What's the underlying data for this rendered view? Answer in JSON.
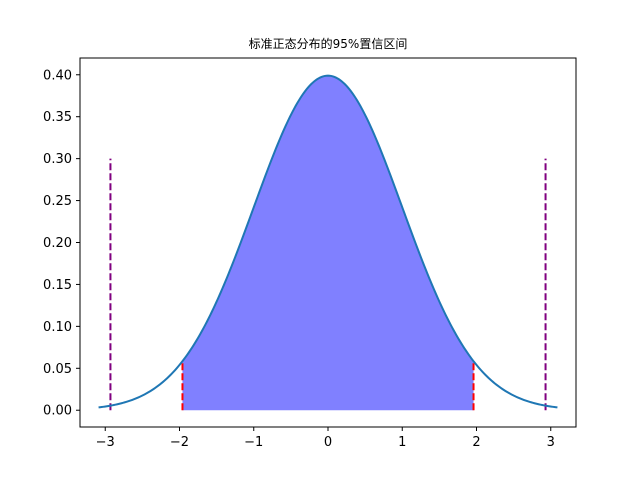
{
  "chart_data": {
    "type": "area",
    "title": "标准正态分布的95%置信区间",
    "xlabel": "",
    "ylabel": "",
    "xlim": [
      -3.34,
      3.34
    ],
    "ylim": [
      -0.02,
      0.42
    ],
    "grid": false,
    "x_ticks": [
      -3,
      -2,
      -1,
      0,
      1,
      2,
      3
    ],
    "x_tick_labels": [
      "−3",
      "−2",
      "−1",
      "0",
      "1",
      "2",
      "3"
    ],
    "y_ticks": [
      0.0,
      0.05,
      0.1,
      0.15,
      0.2,
      0.25,
      0.3,
      0.35,
      0.4
    ],
    "y_tick_labels": [
      "0.00",
      "0.05",
      "0.10",
      "0.15",
      "0.20",
      "0.25",
      "0.30",
      "0.35",
      "0.40"
    ],
    "curve": {
      "function": "standard normal pdf",
      "x_range": [
        -3.09,
        3.09
      ],
      "color": "#1f77b4"
    },
    "shaded_interval": {
      "x_range": [
        -1.96,
        1.96
      ],
      "fill_color": "#8080ff"
    },
    "vlines": [
      {
        "x": -1.96,
        "y_range": [
          0.0,
          0.0584
        ],
        "color": "#ff0000",
        "style": "dashed"
      },
      {
        "x": 1.96,
        "y_range": [
          0.0,
          0.0584
        ],
        "color": "#ff0000",
        "style": "dashed"
      },
      {
        "x": -2.93,
        "y_range": [
          0.0,
          0.3
        ],
        "color": "#800080",
        "style": "dashed"
      },
      {
        "x": 2.93,
        "y_range": [
          0.0,
          0.3
        ],
        "color": "#800080",
        "style": "dashed"
      }
    ]
  }
}
